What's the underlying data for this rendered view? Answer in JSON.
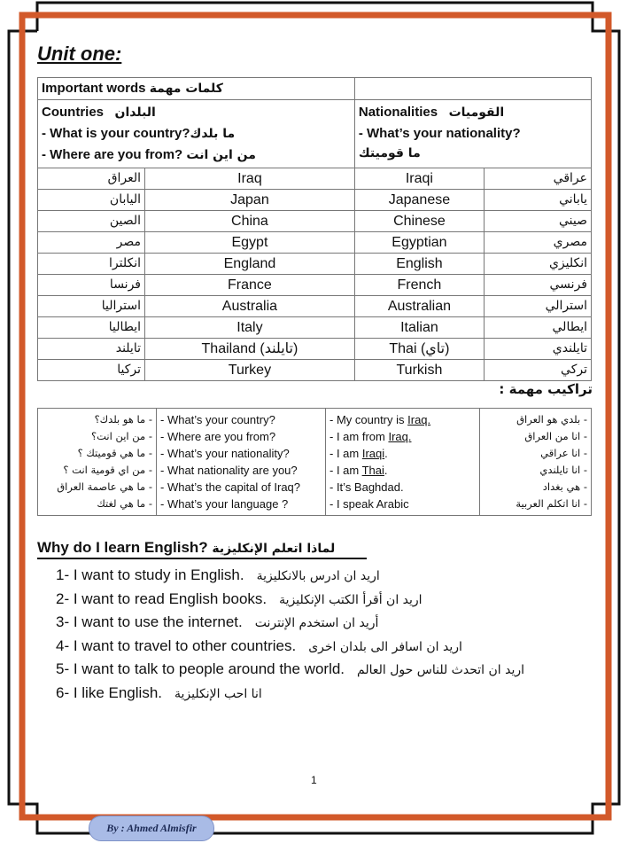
{
  "colors": {
    "frame_orange": "#d2592a",
    "frame_black": "#111111",
    "badge": "#a9bbe6"
  },
  "title": "Unit one:",
  "words_table": {
    "header_en": "Important words",
    "header_ar": "كلمات مهمة",
    "countries_en": "Countries",
    "countries_ar": "البلدان",
    "country_q1_en": "- What is your country?",
    "country_q1_ar": "ما بلدك",
    "country_q2_en": "- Where are you from?",
    "country_q2_ar": "من اين انت",
    "nationalities_en": "Nationalities",
    "nationalities_ar": "القوميات",
    "nat_q_en": "- What’s your nationality?",
    "nat_q_ar": "ما قوميتك",
    "rows": [
      {
        "country_ar": "العراق",
        "country": "Iraq",
        "nationality": "Iraqi",
        "nationality_ar": "عراقي"
      },
      {
        "country_ar": "اليابان",
        "country": "Japan",
        "nationality": "Japanese",
        "nationality_ar": "ياباني"
      },
      {
        "country_ar": "الصين",
        "country": "China",
        "nationality": "Chinese",
        "nationality_ar": "صيني"
      },
      {
        "country_ar": "مصر",
        "country": "Egypt",
        "nationality": "Egyptian",
        "nationality_ar": "مصري"
      },
      {
        "country_ar": "انكلترا",
        "country": "England",
        "nationality": "English",
        "nationality_ar": "انكليزي"
      },
      {
        "country_ar": "فرنسا",
        "country": "France",
        "nationality": "French",
        "nationality_ar": "فرنسي"
      },
      {
        "country_ar": "استراليا",
        "country": "Australia",
        "nationality": "Australian",
        "nationality_ar": "استرالي"
      },
      {
        "country_ar": "ايطاليا",
        "country": "Italy",
        "nationality": "Italian",
        "nationality_ar": "ايطالي"
      },
      {
        "country_ar": "تايلند",
        "country": "Thailand   (تايلند)",
        "nationality": "Thai  (تاي)",
        "nationality_ar": "تايلندي"
      },
      {
        "country_ar": "تركيا",
        "country": "Turkey",
        "nationality": "Turkish",
        "nationality_ar": "تركي"
      }
    ]
  },
  "phrases": {
    "title": "تراكيب مهمة :",
    "questions_ar": [
      "- ما هو بلدك؟",
      "- من اين انت؟",
      "- ما هي قوميتك ؟",
      "- من اي قومية انت ؟",
      "- ما هي عاصمة العراق",
      "- ما هي لغتك"
    ],
    "questions_en": [
      "- What’s your country?",
      "- Where are you from?",
      "- What’s your nationality?",
      "- What nationality are you?",
      "- What’s the capital of Iraq?",
      "- What’s your language ?"
    ],
    "answers_en": [
      {
        "pre": "- My country is ",
        "u": "Iraq.",
        "post": ""
      },
      {
        "pre": "- I am from ",
        "u": "Iraq.",
        "post": ""
      },
      {
        "pre": "- I am ",
        "u": "Iraqi",
        "post": "."
      },
      {
        "pre": "- I am ",
        "u": "Thai",
        "post": "."
      },
      {
        "pre": "- It’s Baghdad.",
        "u": "",
        "post": ""
      },
      {
        "pre": "- I speak Arabic",
        "u": "",
        "post": ""
      }
    ],
    "answers_ar": [
      "- بلدي هو العراق",
      "- انا من العراق",
      "- انا عراقي",
      "- انا تايلندي",
      "- هي بغداد",
      "- انا اتكلم العربية"
    ]
  },
  "why": {
    "heading_en": "Why do I learn English?",
    "heading_ar": "لماذا اتعلم الإنكليزية",
    "reasons": [
      {
        "en": "1- I want to study in English.",
        "ar": "اريد ان ادرس بالانكليزية"
      },
      {
        "en": "2- I want to read English books.",
        "ar": "اريد ان أقرأ الكتب الإنكليزية"
      },
      {
        "en": "3- I want to use the internet.",
        "ar": "أريد ان استخدم الإنترنت"
      },
      {
        "en": "4- I want to travel to other countries.",
        "ar": "اريد ان اسافر الى بلدان اخرى"
      },
      {
        "en": "5- I want to talk to people around the world.",
        "ar": "اريد ان اتحدث للناس حول العالم"
      },
      {
        "en": "6- I like English.",
        "ar": "انا احب الإنكليزية"
      }
    ]
  },
  "page_number": "1",
  "author": "By : Ahmed Almisfir"
}
